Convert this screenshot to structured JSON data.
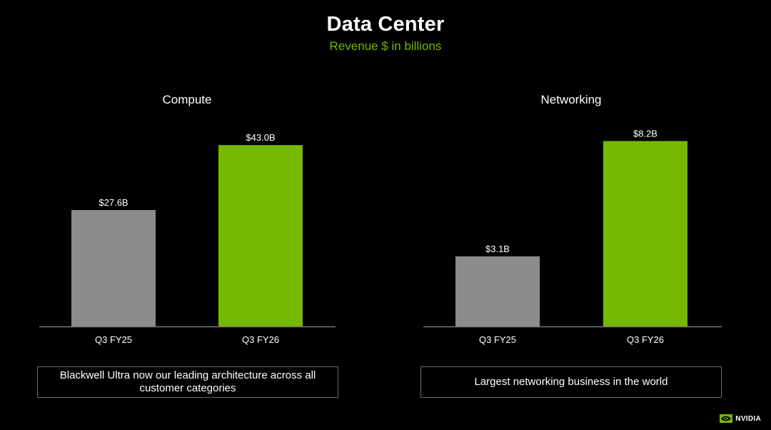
{
  "slide": {
    "title": "Data Center",
    "subtitle": "Revenue $ in billions",
    "accent_color": "#76b900",
    "subtitle_color": "#76b900"
  },
  "chart_data": [
    {
      "type": "bar",
      "title": "Compute",
      "categories": [
        "Q3 FY25",
        "Q3 FY26"
      ],
      "values": [
        27.6,
        43.0
      ],
      "data_labels": [
        "$27.6B",
        "$43.0B"
      ],
      "colors": [
        "#8c8c8c",
        "#76b900"
      ],
      "ylim": [
        0,
        52
      ],
      "xlabel": "",
      "ylabel": "",
      "grid": false,
      "note": "Blackwell Ultra now our leading architecture across all customer categories"
    },
    {
      "type": "bar",
      "title": "Networking",
      "categories": [
        "Q3 FY25",
        "Q3 FY26"
      ],
      "values": [
        3.1,
        8.2
      ],
      "data_labels": [
        "$3.1B",
        "$8.2B"
      ],
      "colors": [
        "#8c8c8c",
        "#76b900"
      ],
      "ylim": [
        0,
        9.7
      ],
      "xlabel": "",
      "ylabel": "",
      "grid": false,
      "note": "Largest networking business in the world"
    }
  ],
  "footer": {
    "brand": "NVIDIA",
    "logo_icon": "nvidia-eye-icon"
  }
}
